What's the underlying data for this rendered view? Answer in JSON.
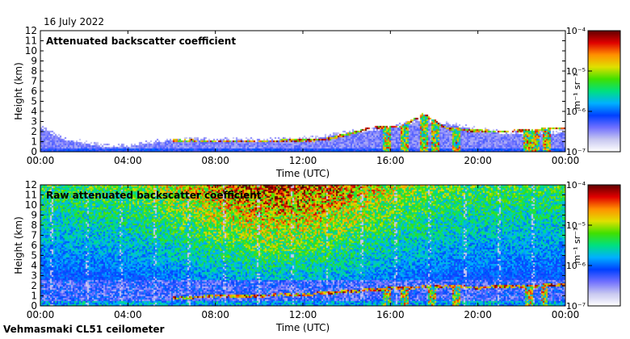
{
  "header": {
    "date": "16 July 2022"
  },
  "footer": {
    "station": "Vehmasmaki CL51 ceilometer"
  },
  "chart_data": [
    {
      "type": "heatmap",
      "title": "Attenuated backscatter coefficient",
      "xlabel": "Time (UTC)",
      "ylabel": "Height (km)",
      "x_ticks": [
        "00:00",
        "04:00",
        "08:00",
        "12:00",
        "16:00",
        "20:00",
        "00:00"
      ],
      "x_range_hours": [
        0,
        24
      ],
      "y_ticks": [
        0,
        1,
        2,
        3,
        4,
        5,
        6,
        7,
        8,
        9,
        10,
        11,
        12
      ],
      "ylim": [
        0,
        12
      ],
      "colorbar": {
        "units": "m⁻¹ sr⁻¹",
        "scale": "log",
        "ticks": [
          "10⁻⁷",
          "10⁻⁶",
          "10⁻⁵",
          "10⁻⁴"
        ],
        "range": [
          1e-07,
          0.0001
        ],
        "colors": [
          "#ffffff",
          "#c8c8f0",
          "#7070ff",
          "#0040ff",
          "#00b0ff",
          "#00e080",
          "#40e000",
          "#e0e000",
          "#ff9000",
          "#e00000",
          "#600000"
        ]
      },
      "features": {
        "aerosol_layer_top_km": [
          [
            0,
            2.4
          ],
          [
            1,
            1.3
          ],
          [
            2,
            0.9
          ],
          [
            3,
            0.5
          ],
          [
            4,
            0.6
          ],
          [
            5,
            0.9
          ],
          [
            6,
            1.2
          ],
          [
            7,
            1.3
          ],
          [
            8,
            1.1
          ],
          [
            9,
            1.2
          ],
          [
            10,
            1.1
          ],
          [
            11,
            1.2
          ],
          [
            12,
            1.3
          ],
          [
            13,
            1.5
          ],
          [
            14,
            1.9
          ],
          [
            15,
            2.1
          ],
          [
            16,
            2.4
          ],
          [
            17,
            2.9
          ],
          [
            18,
            3.0
          ],
          [
            19,
            2.6
          ],
          [
            20,
            2.2
          ],
          [
            21,
            1.9
          ],
          [
            22,
            1.8
          ],
          [
            23,
            1.8
          ],
          [
            24,
            2.0
          ]
        ],
        "cloud_base_km": [
          [
            6,
            1.2
          ],
          [
            8,
            1.1
          ],
          [
            10,
            1.1
          ],
          [
            12,
            1.2
          ],
          [
            13,
            1.3
          ],
          [
            14,
            1.8
          ],
          [
            15,
            2.4
          ],
          [
            16.5,
            2.6
          ],
          [
            17.5,
            3.8
          ],
          [
            18.5,
            2.4
          ],
          [
            19.5,
            2.2
          ],
          [
            20.5,
            2.1
          ],
          [
            21.5,
            2.1
          ],
          [
            22.5,
            2.2
          ],
          [
            23.5,
            2.4
          ]
        ],
        "precipitation_shafts_hours": [
          15.8,
          16.6,
          17.5,
          18.0,
          19.0,
          22.2,
          22.6,
          23.1
        ]
      }
    },
    {
      "type": "heatmap",
      "title": "Raw attenuated backscatter coefficient",
      "xlabel": "Time (UTC)",
      "ylabel": "Height (km)",
      "x_ticks": [
        "00:00",
        "04:00",
        "08:00",
        "12:00",
        "16:00",
        "20:00",
        "00:00"
      ],
      "x_range_hours": [
        0,
        24
      ],
      "y_ticks": [
        0,
        1,
        2,
        3,
        4,
        5,
        6,
        7,
        8,
        9,
        10,
        11,
        12
      ],
      "ylim": [
        0,
        12
      ],
      "colorbar": {
        "units": "m⁻¹ sr⁻¹",
        "scale": "log",
        "ticks": [
          "10⁻⁷",
          "10⁻⁶",
          "10⁻⁵",
          "10⁻⁴"
        ],
        "range": [
          1e-07,
          0.0001
        ],
        "colors": [
          "#ffffff",
          "#c8c8f0",
          "#7070ff",
          "#0040ff",
          "#00b0ff",
          "#00e080",
          "#40e000",
          "#e0e000",
          "#ff9000",
          "#e00000",
          "#600000"
        ]
      },
      "features": {
        "noise_level_peak_hour": 11,
        "cloud_base_km": [
          [
            6,
            0.9
          ],
          [
            8,
            1.0
          ],
          [
            10,
            1.1
          ],
          [
            12,
            1.2
          ],
          [
            14,
            1.5
          ],
          [
            16,
            1.8
          ],
          [
            18,
            2.0
          ],
          [
            20,
            1.9
          ],
          [
            22,
            2.0
          ],
          [
            24,
            2.2
          ]
        ],
        "precipitation_shafts_hours": [
          15.8,
          16.6,
          17.9,
          19.0,
          22.3,
          23.0
        ]
      }
    }
  ]
}
